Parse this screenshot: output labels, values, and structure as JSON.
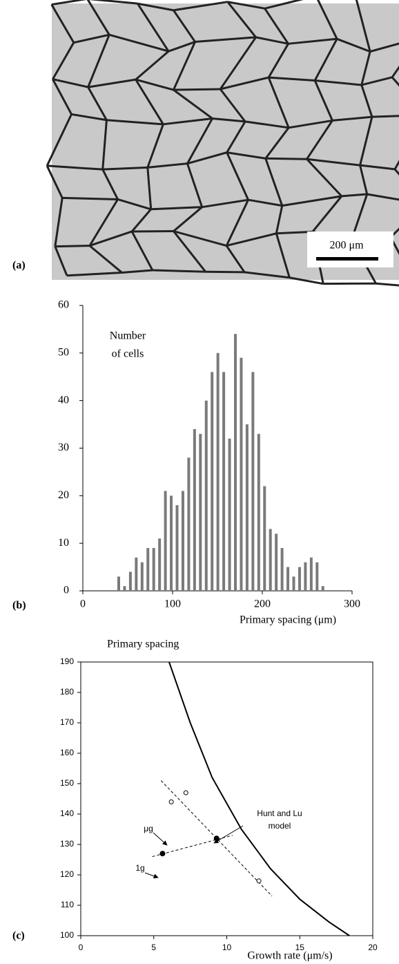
{
  "micrograph": {
    "panel_label": "(a)",
    "scale_bar": "200 μm"
  },
  "chart_data": [
    {
      "type": "bar",
      "panel_label": "(b)",
      "annotation_lines": [
        "Number",
        "of cells"
      ],
      "x_label": "Primary spacing (μm)",
      "color": "#7a7a7a",
      "x": [
        40,
        46.5,
        53,
        59.5,
        66,
        72.5,
        79,
        85.5,
        92,
        98.5,
        105,
        111.5,
        118,
        124.5,
        131,
        137.5,
        144,
        150.5,
        157,
        163.5,
        170,
        176.5,
        183,
        189.5,
        196,
        202.5,
        209,
        215.5,
        222,
        228.5,
        235,
        241.5,
        248,
        254.5,
        261,
        267.5
      ],
      "values": [
        3,
        1,
        4,
        7,
        6,
        9,
        9,
        11,
        21,
        20,
        18,
        21,
        28,
        34,
        33,
        40,
        46,
        50,
        46,
        32,
        54,
        49,
        35,
        46,
        33,
        22,
        13,
        12,
        9,
        5,
        3,
        5,
        6,
        7,
        6,
        1
      ],
      "xlim": [
        0,
        300
      ],
      "xticks": [
        0,
        100,
        200,
        300
      ],
      "ylim": [
        0,
        60
      ],
      "yticks": [
        0,
        10,
        20,
        30,
        40,
        50,
        60
      ]
    },
    {
      "type": "scatter",
      "panel_label": "(c)",
      "title": "Primary spacing",
      "x_label": "Growth rate (μm/s)",
      "xlim": [
        0,
        20
      ],
      "xticks": [
        0,
        5,
        10,
        15,
        20
      ],
      "ylim": [
        100,
        190
      ],
      "yticks": [
        100,
        110,
        120,
        130,
        140,
        150,
        160,
        170,
        180,
        190
      ],
      "series": [
        {
          "style": "curve",
          "color": "#000000",
          "x": [
            6.05,
            7.5,
            9,
            11,
            13,
            15,
            17,
            18.4
          ],
          "values": [
            190,
            170,
            152,
            135,
            122,
            112,
            104.5,
            100
          ]
        },
        {
          "style": "dashed",
          "color": "#000000",
          "x": [
            5.5,
            13.1
          ],
          "values": [
            151,
            113
          ]
        },
        {
          "style": "dashed",
          "color": "#000000",
          "x": [
            4.9,
            10.4
          ],
          "values": [
            126,
            133
          ]
        },
        {
          "style": "open",
          "color": "#000000",
          "x": [
            6.2,
            7.2,
            12.2
          ],
          "values": [
            144,
            147,
            118
          ]
        },
        {
          "style": "filled",
          "color": "#000000",
          "x": [
            5.6,
            9.3
          ],
          "values": [
            127,
            132
          ]
        }
      ],
      "annotations": [
        "μg",
        "1g",
        "Hunt and Lu",
        "model"
      ]
    }
  ]
}
